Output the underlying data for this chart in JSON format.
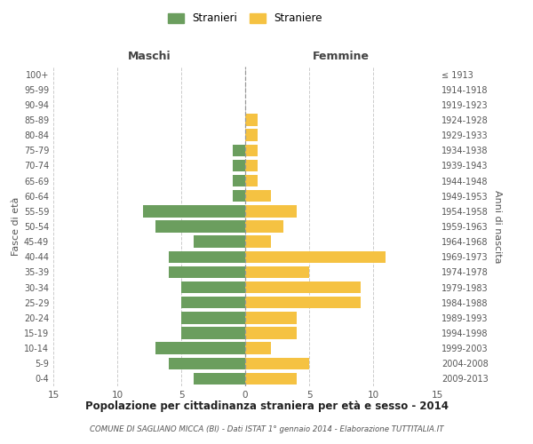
{
  "age_groups": [
    "0-4",
    "5-9",
    "10-14",
    "15-19",
    "20-24",
    "25-29",
    "30-34",
    "35-39",
    "40-44",
    "45-49",
    "50-54",
    "55-59",
    "60-64",
    "65-69",
    "70-74",
    "75-79",
    "80-84",
    "85-89",
    "90-94",
    "95-99",
    "100+"
  ],
  "birth_years": [
    "2009-2013",
    "2004-2008",
    "1999-2003",
    "1994-1998",
    "1989-1993",
    "1984-1988",
    "1979-1983",
    "1974-1978",
    "1969-1973",
    "1964-1968",
    "1959-1963",
    "1954-1958",
    "1949-1953",
    "1944-1948",
    "1939-1943",
    "1934-1938",
    "1929-1933",
    "1924-1928",
    "1919-1923",
    "1914-1918",
    "≤ 1913"
  ],
  "males": [
    4,
    6,
    7,
    5,
    5,
    5,
    5,
    6,
    6,
    4,
    7,
    8,
    1,
    1,
    1,
    1,
    0,
    0,
    0,
    0,
    0
  ],
  "females": [
    4,
    5,
    2,
    4,
    4,
    9,
    9,
    5,
    11,
    2,
    3,
    4,
    2,
    1,
    1,
    1,
    1,
    1,
    0,
    0,
    0
  ],
  "male_color": "#6b9e5e",
  "female_color": "#f5c242",
  "title": "Popolazione per cittadinanza straniera per età e sesso - 2014",
  "subtitle": "COMUNE DI SAGLIANO MICCA (BI) - Dati ISTAT 1° gennaio 2014 - Elaborazione TUTTITALIA.IT",
  "xlabel_left": "Maschi",
  "xlabel_right": "Femmine",
  "ylabel_left": "Fasce di età",
  "ylabel_right": "Anni di nascita",
  "legend_male": "Stranieri",
  "legend_female": "Straniere",
  "xlim": 15,
  "background_color": "#ffffff",
  "grid_color": "#cccccc"
}
